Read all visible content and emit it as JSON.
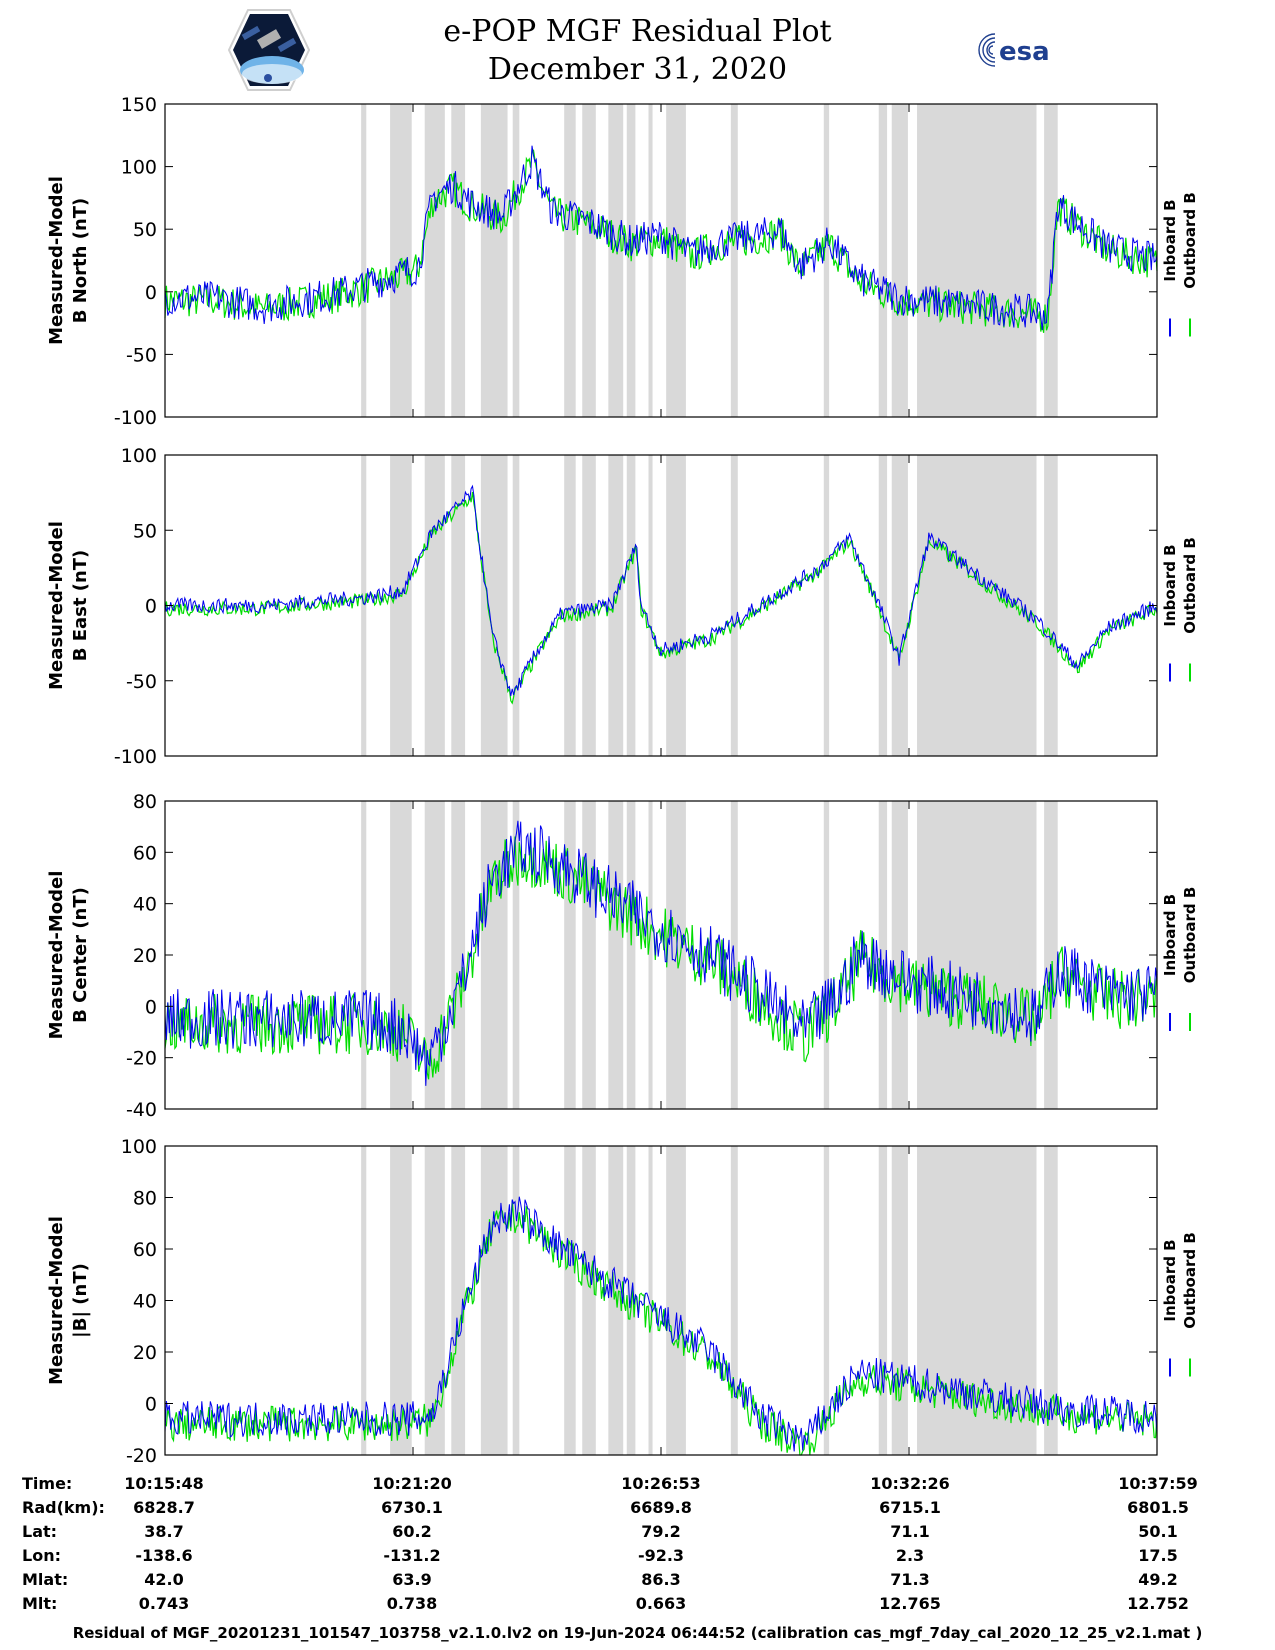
{
  "title": "e-POP MGF Residual Plot",
  "date": "December 31, 2020",
  "logos": {
    "left": "cassiope-logo",
    "right_text": "esa"
  },
  "colors": {
    "inboard": "#0000ee",
    "outboard": "#00dd00",
    "gap": "#d9d9d9"
  },
  "legend": {
    "inboard": "Inboard B",
    "outboard": "Outboard B"
  },
  "chart_data": [
    {
      "type": "line",
      "ylabel1": "Measured-Model",
      "ylabel2": "B North (nT)",
      "ylim": [
        -100,
        150
      ],
      "yticks": [
        -100,
        -50,
        0,
        50,
        100,
        150
      ],
      "profile": [
        [
          0,
          -5
        ],
        [
          0.05,
          -5
        ],
        [
          0.1,
          -12
        ],
        [
          0.18,
          0
        ],
        [
          0.24,
          15
        ],
        [
          0.255,
          20
        ],
        [
          0.27,
          75
        ],
        [
          0.29,
          85
        ],
        [
          0.31,
          70
        ],
        [
          0.34,
          60
        ],
        [
          0.37,
          105
        ],
        [
          0.39,
          65
        ],
        [
          0.43,
          55
        ],
        [
          0.47,
          40
        ],
        [
          0.5,
          45
        ],
        [
          0.53,
          30
        ],
        [
          0.56,
          40
        ],
        [
          0.6,
          45
        ],
        [
          0.62,
          50
        ],
        [
          0.64,
          20
        ],
        [
          0.67,
          40
        ],
        [
          0.7,
          10
        ],
        [
          0.74,
          -5
        ],
        [
          0.8,
          -10
        ],
        [
          0.86,
          -15
        ],
        [
          0.89,
          -18
        ],
        [
          0.9,
          70
        ],
        [
          0.92,
          55
        ],
        [
          0.95,
          35
        ],
        [
          1.0,
          25
        ]
      ],
      "noise": 14
    },
    {
      "type": "line",
      "ylabel1": "Measured-Model",
      "ylabel2": "B East (nT)",
      "ylim": [
        -100,
        100
      ],
      "yticks": [
        -100,
        -50,
        0,
        50,
        100
      ],
      "profile": [
        [
          0,
          0
        ],
        [
          0.1,
          0
        ],
        [
          0.15,
          3
        ],
        [
          0.2,
          5
        ],
        [
          0.24,
          10
        ],
        [
          0.27,
          50
        ],
        [
          0.31,
          75
        ],
        [
          0.33,
          -20
        ],
        [
          0.35,
          -60
        ],
        [
          0.38,
          -25
        ],
        [
          0.4,
          -5
        ],
        [
          0.45,
          0
        ],
        [
          0.475,
          40
        ],
        [
          0.48,
          0
        ],
        [
          0.5,
          -30
        ],
        [
          0.55,
          -20
        ],
        [
          0.6,
          0
        ],
        [
          0.66,
          25
        ],
        [
          0.69,
          45
        ],
        [
          0.72,
          0
        ],
        [
          0.74,
          -35
        ],
        [
          0.77,
          45
        ],
        [
          0.8,
          30
        ],
        [
          0.84,
          10
        ],
        [
          0.88,
          -10
        ],
        [
          0.92,
          -40
        ],
        [
          0.95,
          -15
        ],
        [
          1.0,
          0
        ]
      ],
      "noise": 5
    },
    {
      "type": "line",
      "ylabel1": "Measured-Model",
      "ylabel2": "B Center (nT)",
      "ylim": [
        -40,
        80
      ],
      "yticks": [
        -40,
        -20,
        0,
        20,
        40,
        60,
        80
      ],
      "profile": [
        [
          0,
          -5
        ],
        [
          0.1,
          -5
        ],
        [
          0.2,
          -5
        ],
        [
          0.24,
          -8
        ],
        [
          0.265,
          -22
        ],
        [
          0.3,
          10
        ],
        [
          0.33,
          50
        ],
        [
          0.36,
          62
        ],
        [
          0.4,
          55
        ],
        [
          0.5,
          30
        ],
        [
          0.55,
          20
        ],
        [
          0.6,
          5
        ],
        [
          0.645,
          -10
        ],
        [
          0.68,
          5
        ],
        [
          0.7,
          20
        ],
        [
          0.75,
          10
        ],
        [
          0.8,
          5
        ],
        [
          0.85,
          0
        ],
        [
          0.88,
          -5
        ],
        [
          0.9,
          15
        ],
        [
          0.95,
          5
        ],
        [
          1.0,
          5
        ]
      ],
      "noise": 12
    },
    {
      "type": "line",
      "ylabel1": "Measured-Model",
      "ylabel2": "|B| (nT)",
      "ylim": [
        -20,
        100
      ],
      "yticks": [
        -20,
        0,
        20,
        40,
        60,
        80,
        100
      ],
      "profile": [
        [
          0,
          -6
        ],
        [
          0.1,
          -6
        ],
        [
          0.2,
          -6
        ],
        [
          0.25,
          -6
        ],
        [
          0.27,
          -4
        ],
        [
          0.3,
          35
        ],
        [
          0.33,
          70
        ],
        [
          0.355,
          75
        ],
        [
          0.4,
          60
        ],
        [
          0.5,
          33
        ],
        [
          0.55,
          20
        ],
        [
          0.6,
          -5
        ],
        [
          0.645,
          -15
        ],
        [
          0.67,
          -2
        ],
        [
          0.7,
          12
        ],
        [
          0.8,
          5
        ],
        [
          0.9,
          -2
        ],
        [
          1.0,
          -5
        ]
      ],
      "noise": 7
    }
  ],
  "gaps": [
    [
      0.1977,
      0.2029
    ],
    [
      0.2269,
      0.2487
    ],
    [
      0.2618,
      0.2821
    ],
    [
      0.2886,
      0.3025
    ],
    [
      0.3184,
      0.3453
    ],
    [
      0.3505,
      0.3572
    ],
    [
      0.4024,
      0.414
    ],
    [
      0.4206,
      0.4343
    ],
    [
      0.4469,
      0.4619
    ],
    [
      0.4655,
      0.4742
    ],
    [
      0.4874,
      0.4915
    ],
    [
      0.5052,
      0.5251
    ],
    [
      0.5704,
      0.5774
    ],
    [
      0.6641,
      0.6695
    ],
    [
      0.7195,
      0.7279
    ],
    [
      0.7326,
      0.7489
    ],
    [
      0.7581,
      0.8785
    ],
    [
      0.8862,
      0.8999
    ]
  ],
  "info": {
    "labels": [
      "Time:",
      "Rad(km):",
      "Lat:",
      "Lon:",
      "Mlat:",
      "Mlt:"
    ],
    "columns": [
      [
        "10:15:48",
        "6828.7",
        "38.7",
        "-138.6",
        "42.0",
        "0.743"
      ],
      [
        "10:21:20",
        "6730.1",
        "60.2",
        "-131.2",
        "63.9",
        "0.738"
      ],
      [
        "10:26:53",
        "6689.8",
        "79.2",
        "-92.3",
        "86.3",
        "0.663"
      ],
      [
        "10:32:26",
        "6715.1",
        "71.1",
        "2.3",
        "71.3",
        "12.765"
      ],
      [
        "10:37:59",
        "6801.5",
        "50.1",
        "17.5",
        "49.2",
        "12.752"
      ]
    ]
  },
  "footer": "Residual of MGF_20201231_101547_103758_v2.1.0.lv2 on 19-Jun-2024 06:44:52 (calibration cas_mgf_7day_cal_2020_12_25_v2.1.mat )"
}
